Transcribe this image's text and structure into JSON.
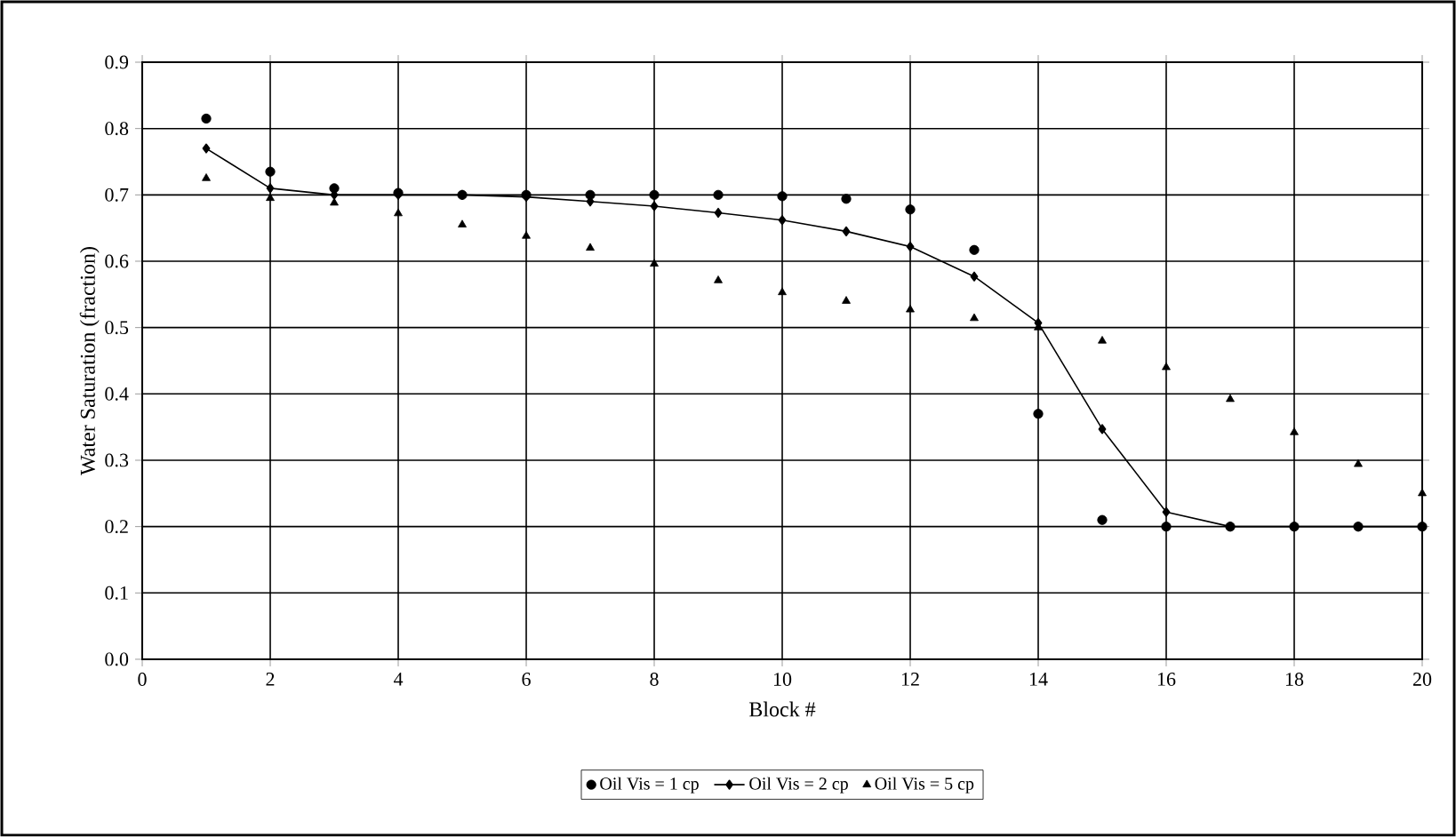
{
  "chart_data": {
    "type": "line",
    "xlabel": "Block #",
    "ylabel": "Water Saturation (fraction)",
    "x": [
      1,
      2,
      3,
      4,
      5,
      6,
      7,
      8,
      9,
      10,
      11,
      12,
      13,
      14,
      15,
      16,
      17,
      18,
      19,
      20
    ],
    "series": [
      {
        "name": "Oil Vis = 1 cp",
        "type": "scatter",
        "color": "#000000",
        "marker": "circle",
        "values": [
          0.815,
          0.735,
          0.71,
          0.703,
          0.7,
          0.7,
          0.7,
          0.7,
          0.7,
          0.698,
          0.694,
          0.678,
          0.617,
          0.37,
          0.21,
          0.2,
          0.2,
          0.2,
          0.2,
          0.2
        ]
      },
      {
        "name": "Oil Vis = 2 cp",
        "color": "#000000",
        "marker": "diamond",
        "line_style": "solid",
        "values": [
          0.77,
          0.71,
          0.7,
          0.7,
          0.7,
          0.697,
          0.69,
          0.683,
          0.673,
          0.662,
          0.645,
          0.622,
          0.577,
          0.507,
          0.347,
          0.222,
          0.2,
          0.2,
          0.2,
          0.2
        ]
      },
      {
        "name": "Oil Vis = 5 cp",
        "type": "scatter",
        "color": "#000000",
        "marker": "triangle",
        "values": [
          0.725,
          0.695,
          0.688,
          0.672,
          0.655,
          0.638,
          0.62,
          0.596,
          0.571,
          0.553,
          0.54,
          0.527,
          0.514,
          0.5,
          0.48,
          0.44,
          0.392,
          0.342,
          0.294,
          0.25
        ]
      }
    ],
    "xlim": [
      0,
      20
    ],
    "xticks": [
      0,
      2,
      4,
      6,
      8,
      10,
      12,
      14,
      16,
      18,
      20
    ],
    "ylim": [
      0,
      0.9
    ],
    "yticks": [
      {
        "value": 0,
        "label": "0.0"
      },
      0.1,
      0.2,
      0.3,
      0.4,
      0.5,
      0.6,
      0.7,
      0.8,
      0.9
    ],
    "grid": true,
    "legend": "bottom"
  }
}
